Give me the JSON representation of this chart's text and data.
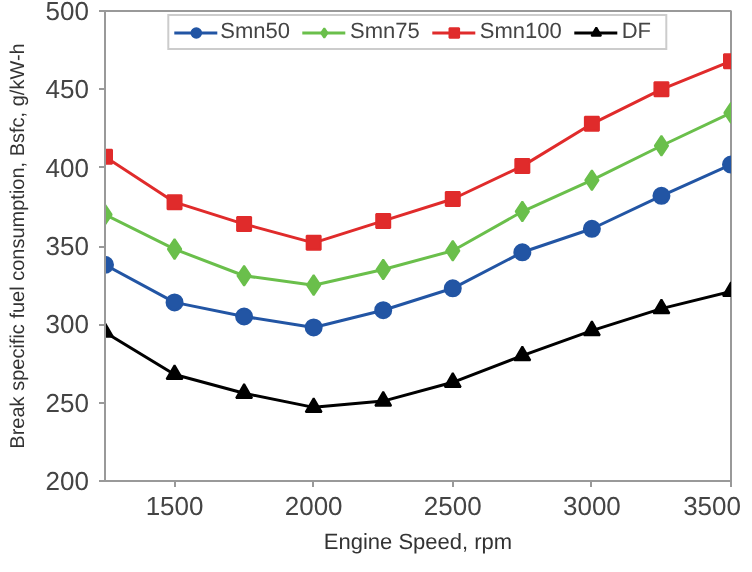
{
  "chart_data": {
    "type": "line",
    "xlabel": "Engine Speed, rpm",
    "ylabel": "Break specific fuel consumption, Bsfc, g/kW-h",
    "x": [
      1250,
      1500,
      1750,
      2000,
      2250,
      2500,
      2750,
      3000,
      3250,
      3500
    ],
    "series": [
      {
        "name": "Smn50",
        "color": "#2255a4",
        "marker": "circle",
        "values": [
          338,
          314,
          305,
          298,
          309,
          323,
          346,
          361,
          382,
          402
        ]
      },
      {
        "name": "Smn75",
        "color": "#6abf4b",
        "marker": "diamond",
        "values": [
          370,
          348,
          331,
          325,
          335,
          347,
          372,
          392,
          414,
          435
        ]
      },
      {
        "name": "Smn100",
        "color": "#e02b2b",
        "marker": "square",
        "values": [
          407,
          378,
          364,
          352,
          366,
          380,
          401,
          428,
          450,
          468
        ]
      },
      {
        "name": "DF",
        "color": "#000000",
        "marker": "triangle",
        "values": [
          295,
          268,
          256,
          247,
          251,
          263,
          280,
          296,
          310,
          321
        ]
      }
    ],
    "xlim": [
      1250,
      3500
    ],
    "xticks": [
      1500,
      2000,
      2500,
      3000,
      3500
    ],
    "ylim": [
      200,
      500
    ],
    "yticks": [
      200,
      250,
      300,
      350,
      400,
      450,
      500
    ],
    "grid": false,
    "legend": "top",
    "line_style": "solid"
  }
}
